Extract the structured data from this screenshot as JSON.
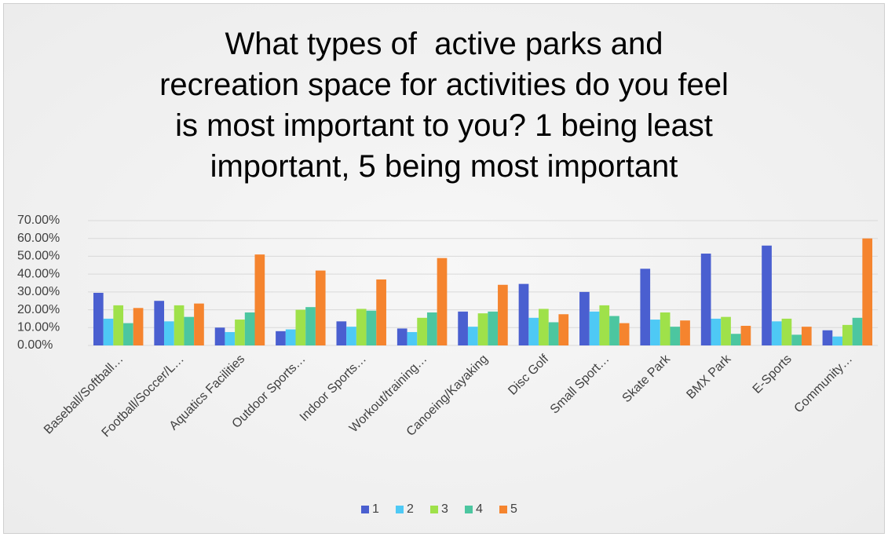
{
  "chart_data": {
    "type": "bar",
    "title": "What types of  active parks and\nrecreation space for activities do you feel\nis most important to you? 1 being least\nimportant, 5 being most important",
    "categories": [
      "Baseball/Softball…",
      "Football/Soccer/L…",
      "Aquatics Facilities",
      "Outdoor Sports…",
      "Indoor Sports…",
      "Workout/training…",
      "Canoeing/Kayaking",
      "Disc Golf",
      "Small Sport…",
      "Skate Park",
      "BMX Park",
      "E-Sports",
      "Community…"
    ],
    "series": [
      {
        "name": "1",
        "color": "#4a5fd0",
        "values": [
          29.5,
          25,
          10,
          8,
          13.5,
          9.5,
          19,
          34.5,
          30,
          43,
          51.5,
          56,
          8.5
        ]
      },
      {
        "name": "2",
        "color": "#4ec9f5",
        "values": [
          15,
          13.5,
          7.5,
          9,
          10.5,
          7.5,
          10.5,
          15.5,
          19,
          14.5,
          15,
          13.5,
          5
        ]
      },
      {
        "name": "3",
        "color": "#9fe14a",
        "values": [
          22.5,
          22.5,
          14.5,
          20,
          20.5,
          15.5,
          18,
          20.5,
          22.5,
          18.5,
          16,
          15,
          11.5
        ]
      },
      {
        "name": "4",
        "color": "#4cc6a0",
        "values": [
          12.5,
          16,
          18.5,
          21.5,
          19.5,
          18.5,
          19,
          13,
          16.5,
          10.5,
          6.5,
          6,
          15.5
        ]
      },
      {
        "name": "5",
        "color": "#f5842e",
        "values": [
          21,
          23.5,
          51,
          42,
          37,
          49,
          34,
          17.5,
          12.5,
          14,
          11,
          10.5,
          60
        ]
      }
    ],
    "ylim": [
      0,
      70
    ],
    "yticks": [
      {
        "value": 0,
        "label": "0.00%"
      },
      {
        "value": 10,
        "label": "10.00%"
      },
      {
        "value": 20,
        "label": "20.00%"
      },
      {
        "value": 30,
        "label": "30.00%"
      },
      {
        "value": 40,
        "label": "40.00%"
      },
      {
        "value": 50,
        "label": "50.00%"
      },
      {
        "value": 60,
        "label": "60.00%"
      },
      {
        "value": 70,
        "label": "70.00%"
      }
    ],
    "grid": true,
    "legend": "bottom"
  }
}
